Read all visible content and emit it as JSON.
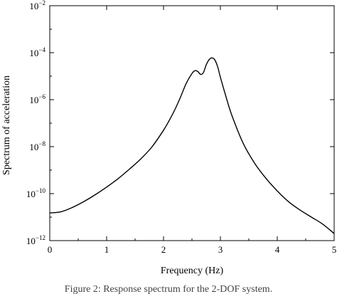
{
  "chart_data": {
    "type": "line",
    "xlabel": "Frequency (Hz)",
    "ylabel": "Spectrum of acceleration",
    "xlim": [
      0,
      5
    ],
    "ylim": [
      1e-12,
      0.01
    ],
    "y_scale": "log",
    "x_ticks": [
      {
        "value": 0,
        "label": "0"
      },
      {
        "value": 1,
        "label": "1"
      },
      {
        "value": 2,
        "label": "2"
      },
      {
        "value": 3,
        "label": "3"
      },
      {
        "value": 4,
        "label": "4"
      },
      {
        "value": 5,
        "label": "5"
      }
    ],
    "y_ticks": [
      {
        "value": 1e-12,
        "base": "10",
        "exp": "−12"
      },
      {
        "value": 1e-10,
        "base": "10",
        "exp": "−10"
      },
      {
        "value": 1e-08,
        "base": "10",
        "exp": "−8"
      },
      {
        "value": 1e-06,
        "base": "10",
        "exp": "−6"
      },
      {
        "value": 0.0001,
        "base": "10",
        "exp": "−4"
      },
      {
        "value": 0.01,
        "base": "10",
        "exp": "−2"
      }
    ],
    "grid": false,
    "series": [
      {
        "color": "#000000",
        "x": [
          0,
          0.2,
          0.4,
          0.6,
          0.8,
          1.0,
          1.2,
          1.4,
          1.6,
          1.8,
          2.0,
          2.1,
          2.2,
          2.3,
          2.4,
          2.5,
          2.55,
          2.6,
          2.65,
          2.7,
          2.75,
          2.8,
          2.85,
          2.9,
          2.95,
          3.0,
          3.1,
          3.2,
          3.4,
          3.6,
          3.8,
          4.0,
          4.2,
          4.4,
          4.6,
          4.8,
          5.0
        ],
        "y": [
          1.5e-11,
          1.7e-11,
          2.6e-11,
          4.6e-11,
          9e-11,
          1.9e-10,
          4.3e-10,
          1.1e-09,
          3e-09,
          1e-08,
          5e-08,
          1.3e-07,
          3.8e-07,
          1.3e-06,
          5e-06,
          1.3e-05,
          1.7e-05,
          1.6e-05,
          1.2e-05,
          1.4e-05,
          3e-05,
          5e-05,
          6e-05,
          5e-05,
          2.6e-05,
          9e-06,
          1.3e-06,
          2.2e-07,
          1.4e-08,
          2e-09,
          4.5e-10,
          1.3e-10,
          4.5e-11,
          2e-11,
          1e-11,
          5e-12,
          2e-12
        ]
      }
    ]
  },
  "caption": "Figure 2: Response spectrum for the 2-DOF system."
}
